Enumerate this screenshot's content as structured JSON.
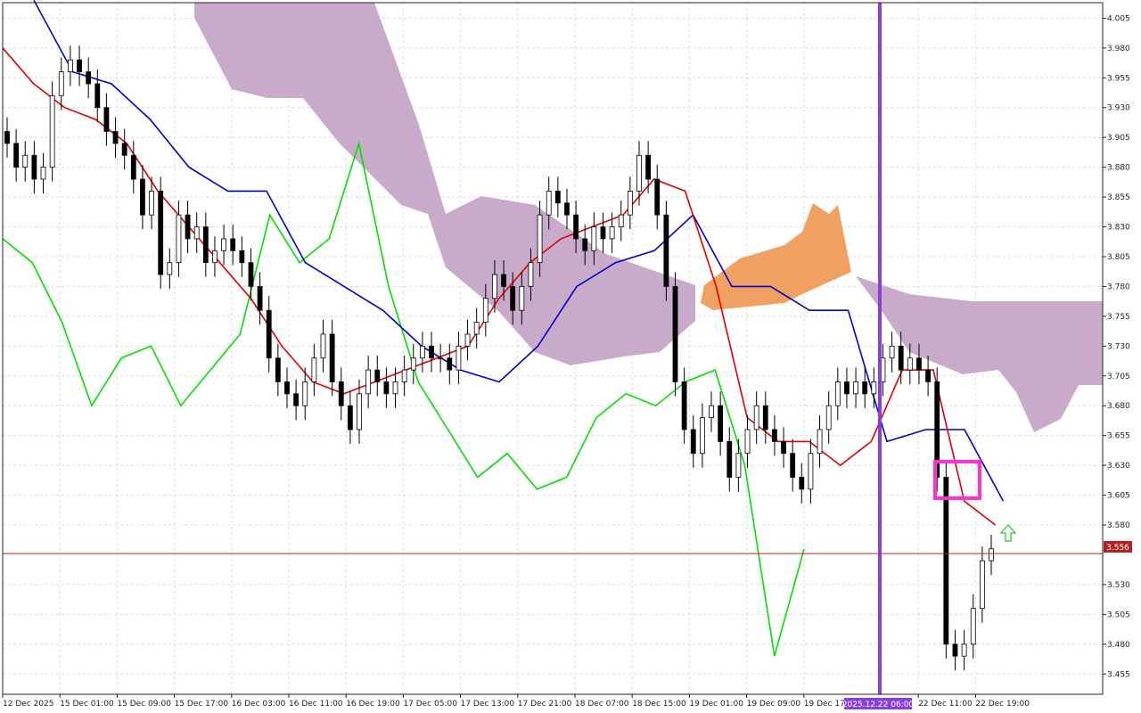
{
  "chart_data": {
    "type": "candlestick",
    "title": "",
    "xlabel": "",
    "ylabel": "",
    "ylim": [
      3.438,
      4.018
    ],
    "y_ticks": [
      "4.005",
      "3.980",
      "3.955",
      "3.930",
      "3.905",
      "3.880",
      "3.855",
      "3.830",
      "3.805",
      "3.780",
      "3.755",
      "3.730",
      "3.705",
      "3.680",
      "3.655",
      "3.630",
      "3.605",
      "3.580",
      "3.556",
      "3.530",
      "3.505",
      "3.480",
      "3.455"
    ],
    "x_ticks": [
      "12 Dec 2025",
      "15 Dec 01:00",
      "15 Dec 09:00",
      "15 Dec 17:00",
      "16 Dec 03:00",
      "16 Dec 11:00",
      "16 Dec 19:00",
      "17 Dec 05:00",
      "17 Dec 13:00",
      "17 Dec 21:00",
      "18 Dec 07:00",
      "18 Dec 15:00",
      "19 Dec 01:00",
      "19 Dec 09:00",
      "19 Dec 17:00",
      "2025.12.22 06:00",
      "22 Dec 11:00",
      "22 Dec 19:00"
    ],
    "current_price": "3.556",
    "vertical_line_label": "2025.12.22 06:00",
    "grid": true,
    "candles_close": [
      3.9,
      3.88,
      3.89,
      3.87,
      3.88,
      3.94,
      3.96,
      3.97,
      3.96,
      3.95,
      3.93,
      3.91,
      3.9,
      3.89,
      3.87,
      3.84,
      3.86,
      3.79,
      3.8,
      3.84,
      3.82,
      3.83,
      3.8,
      3.81,
      3.82,
      3.81,
      3.8,
      3.78,
      3.76,
      3.72,
      3.7,
      3.69,
      3.68,
      3.7,
      3.72,
      3.74,
      3.7,
      3.68,
      3.66,
      3.69,
      3.71,
      3.7,
      3.69,
      3.7,
      3.71,
      3.72,
      3.73,
      3.72,
      3.72,
      3.71,
      3.73,
      3.74,
      3.75,
      3.77,
      3.79,
      3.78,
      3.76,
      3.78,
      3.8,
      3.84,
      3.86,
      3.85,
      3.84,
      3.82,
      3.81,
      3.83,
      3.82,
      3.83,
      3.84,
      3.86,
      3.89,
      3.87,
      3.84,
      3.78,
      3.7,
      3.66,
      3.64,
      3.67,
      3.68,
      3.65,
      3.62,
      3.64,
      3.66,
      3.68,
      3.66,
      3.65,
      3.64,
      3.62,
      3.61,
      3.64,
      3.66,
      3.68,
      3.7,
      3.69,
      3.7,
      3.69,
      3.7,
      3.72,
      3.73,
      3.71,
      3.72,
      3.71,
      3.7,
      3.62,
      3.48,
      3.47,
      3.48,
      3.51,
      3.55,
      3.56
    ],
    "tenkan_sen_close_estimate": [
      3.98,
      3.95,
      3.93,
      3.92,
      3.9,
      3.86,
      3.83,
      3.8,
      3.77,
      3.73,
      3.7,
      3.69,
      3.7,
      3.71,
      3.72,
      3.73,
      3.77,
      3.8,
      3.82,
      3.83,
      3.84,
      3.87,
      3.86,
      3.78,
      3.67,
      3.65,
      3.65,
      3.63,
      3.65,
      3.71,
      3.71,
      3.6,
      3.58
    ],
    "kijun_sen_close_estimate": [
      4.02,
      3.96,
      3.95,
      3.92,
      3.88,
      3.86,
      3.86,
      3.8,
      3.78,
      3.76,
      3.73,
      3.71,
      3.7,
      3.73,
      3.78,
      3.8,
      3.81,
      3.84,
      3.78,
      3.78,
      3.76,
      3.76,
      3.65,
      3.66,
      3.66,
      3.6
    ],
    "chikou_span_close_estimate": [
      3.82,
      3.8,
      3.75,
      3.68,
      3.72,
      3.73,
      3.68,
      3.71,
      3.74,
      3.84,
      3.8,
      3.82,
      3.9,
      3.78,
      3.7,
      3.66,
      3.62,
      3.64,
      3.61,
      3.62,
      3.67,
      3.69,
      3.68,
      3.7,
      3.71,
      3.63,
      3.47,
      3.56
    ],
    "series": [],
    "colors": {
      "bull_candle": "#ffffff",
      "bear_candle": "#000000",
      "tenkan": "#e00000",
      "kijun": "#0000cc",
      "chikou": "#00e000",
      "cloud_bear": "#c8aacb",
      "cloud_bull": "#f0a060",
      "vertical_line": "#8a3ee0",
      "highlight_box": "#ff33cc",
      "arrow": "#55cc55",
      "price_line": "#cc2222",
      "price_label_bg": "#b22222"
    }
  }
}
